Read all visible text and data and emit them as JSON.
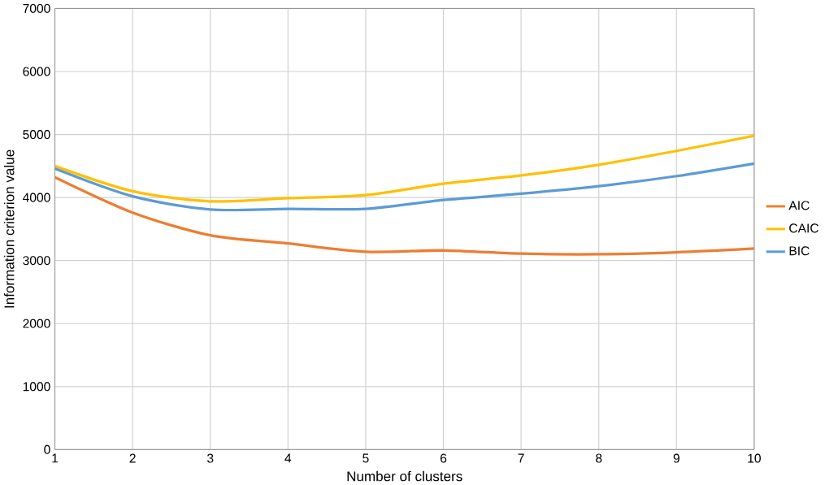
{
  "chart_data": {
    "type": "line",
    "xlabel": "Number of clusters",
    "ylabel": "Information criterion value",
    "x": [
      1,
      2,
      3,
      4,
      5,
      6,
      7,
      8,
      9,
      10
    ],
    "series": [
      {
        "name": "AIC",
        "color": "#ed7d31",
        "values": [
          4320,
          3760,
          3400,
          3270,
          3140,
          3160,
          3110,
          3100,
          3130,
          3190
        ]
      },
      {
        "name": "CAIC",
        "color": "#ffc000",
        "values": [
          4500,
          4100,
          3940,
          3990,
          4040,
          4220,
          4350,
          4520,
          4740,
          4980
        ]
      },
      {
        "name": "BIC",
        "color": "#5b9bd5",
        "values": [
          4460,
          4020,
          3810,
          3820,
          3820,
          3960,
          4060,
          4180,
          4340,
          4540
        ]
      }
    ],
    "xlim": [
      1,
      10
    ],
    "xticks": [
      1,
      2,
      3,
      4,
      5,
      6,
      7,
      8,
      9,
      10
    ],
    "ylim": [
      0,
      7000
    ],
    "yticks": [
      0,
      1000,
      2000,
      3000,
      4000,
      5000,
      6000,
      7000
    ],
    "grid": true,
    "legend": "right",
    "marker": "none",
    "line_style": "solid"
  }
}
